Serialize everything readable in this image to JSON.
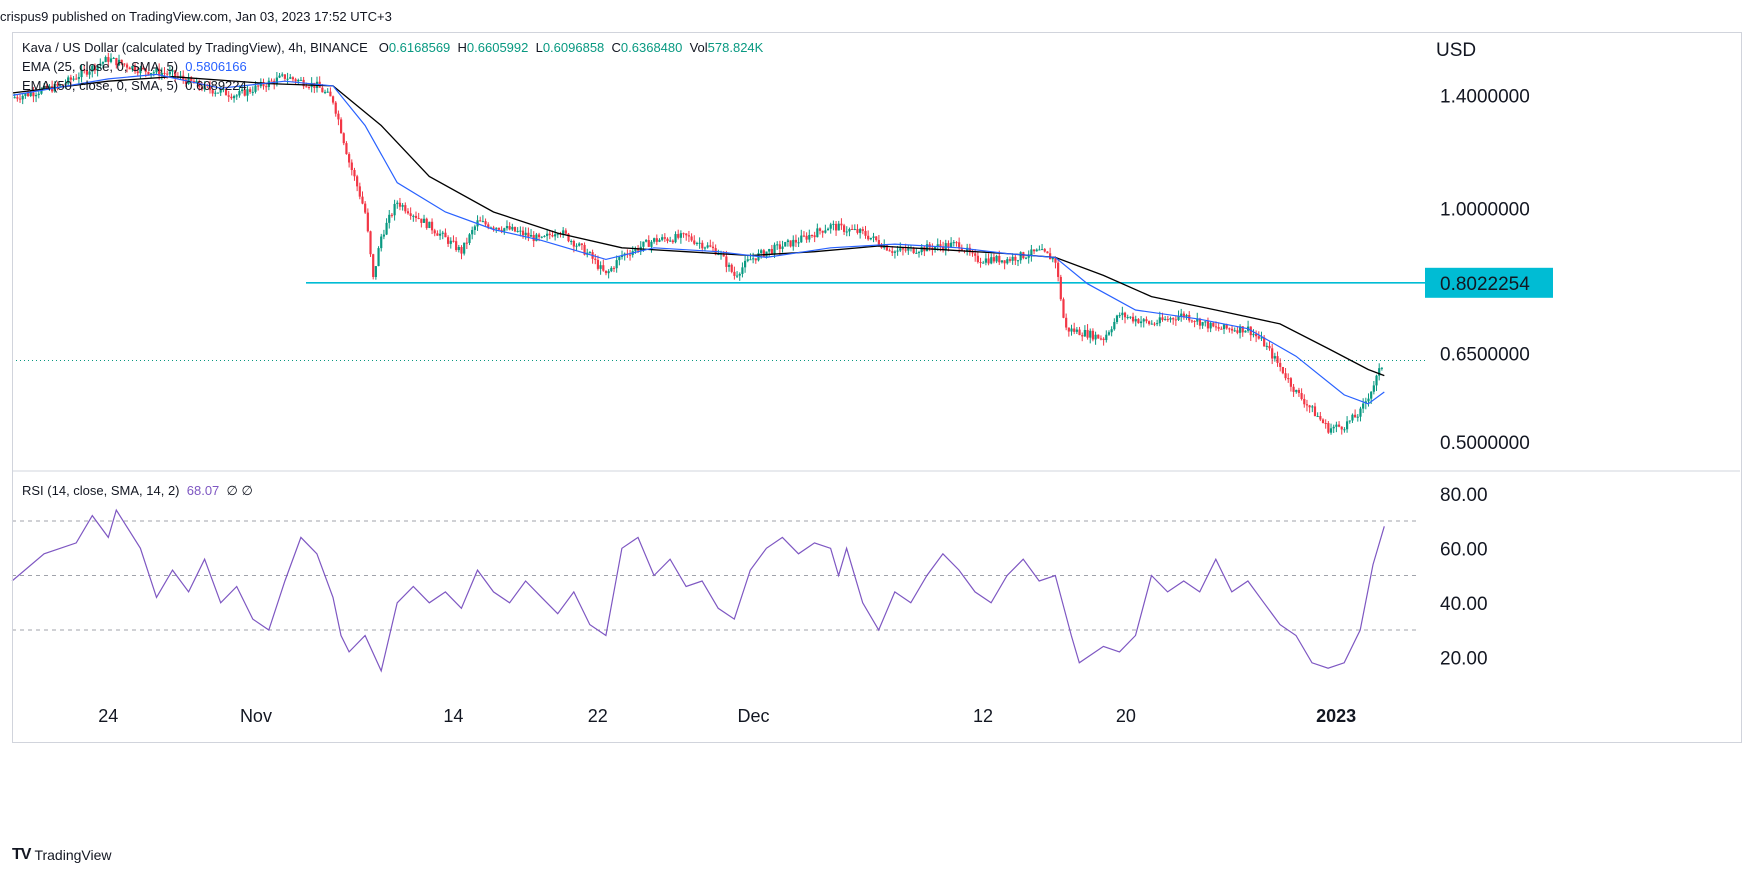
{
  "header": {
    "published_line": "crispus9 published on TradingView.com, Jan 03, 2023 17:52 UTC+3"
  },
  "legend": {
    "symbol": "Kava / US Dollar (calculated by TradingView), 4h, BINANCE",
    "o_label": "O",
    "o_value": "0.6168569",
    "h_label": "H",
    "h_value": "0.6605992",
    "l_label": "L",
    "l_value": "0.6096858",
    "c_label": "C",
    "c_value": "0.6368480",
    "vol_label": "Vol",
    "vol_value": "578.824K",
    "ema25_label": "EMA (25, close, 0, SMA, 5)",
    "ema25_value": "0.5806166",
    "ema50_label": "EMA (50, close, 0, SMA, 5)",
    "ema50_value": "0.6089224",
    "rsi_label": "RSI (14, close, SMA, 14, 2)",
    "rsi_value": "68.07",
    "rsi_extra": "∅  ∅"
  },
  "footer": {
    "brand": "TradingView",
    "logo": "TV"
  },
  "colors": {
    "up": "#089981",
    "down": "#f23645",
    "ema25": "#2962ff",
    "ema50": "#000000",
    "support": "#00bcd4",
    "rsi": "#7e57c2",
    "grid_dash": "#a0a3ab"
  },
  "chart_data": [
    {
      "type": "candlestick",
      "title": "Kava / US Dollar (calculated by TradingView), 4h, BINANCE",
      "ylabel": "USD",
      "y_scale": "log",
      "ylim": [
        0.46,
        1.68
      ],
      "x_ticks": [
        "24",
        "Nov",
        "14",
        "22",
        "Dec",
        "12",
        "20",
        "2023"
      ],
      "y_ticks": [
        "1.4000000",
        "1.0000000",
        "0.6500000",
        "0.5000000"
      ],
      "support_level": {
        "value": 0.8022254,
        "label": "0.8022254"
      },
      "last_close": 0.636848,
      "price_path": [
        {
          "day": 0,
          "price": 1.39
        },
        {
          "day": 3,
          "price": 1.44
        },
        {
          "day": 6,
          "price": 1.56
        },
        {
          "day": 8,
          "price": 1.51
        },
        {
          "day": 10,
          "price": 1.49
        },
        {
          "day": 12,
          "price": 1.43
        },
        {
          "day": 14,
          "price": 1.4
        },
        {
          "day": 17,
          "price": 1.48
        },
        {
          "day": 19,
          "price": 1.44
        },
        {
          "day": 20,
          "price": 1.38
        },
        {
          "day": 21,
          "price": 1.15
        },
        {
          "day": 22,
          "price": 0.99
        },
        {
          "day": 22.5,
          "price": 0.81
        },
        {
          "day": 23,
          "price": 0.92
        },
        {
          "day": 24,
          "price": 1.02
        },
        {
          "day": 26,
          "price": 0.95
        },
        {
          "day": 28,
          "price": 0.88
        },
        {
          "day": 29,
          "price": 0.96
        },
        {
          "day": 31,
          "price": 0.94
        },
        {
          "day": 33,
          "price": 0.91
        },
        {
          "day": 34,
          "price": 0.94
        },
        {
          "day": 36,
          "price": 0.87
        },
        {
          "day": 37,
          "price": 0.82
        },
        {
          "day": 38,
          "price": 0.87
        },
        {
          "day": 40,
          "price": 0.91
        },
        {
          "day": 42,
          "price": 0.92
        },
        {
          "day": 44,
          "price": 0.88
        },
        {
          "day": 45,
          "price": 0.82
        },
        {
          "day": 46,
          "price": 0.86
        },
        {
          "day": 47,
          "price": 0.88
        },
        {
          "day": 49,
          "price": 0.91
        },
        {
          "day": 51,
          "price": 0.95
        },
        {
          "day": 53,
          "price": 0.93
        },
        {
          "day": 55,
          "price": 0.88
        },
        {
          "day": 57,
          "price": 0.89
        },
        {
          "day": 59,
          "price": 0.9
        },
        {
          "day": 60,
          "price": 0.86
        },
        {
          "day": 62,
          "price": 0.86
        },
        {
          "day": 64,
          "price": 0.88
        },
        {
          "day": 65,
          "price": 0.86
        },
        {
          "day": 65.6,
          "price": 0.7
        },
        {
          "day": 67,
          "price": 0.69
        },
        {
          "day": 68,
          "price": 0.68
        },
        {
          "day": 69,
          "price": 0.73
        },
        {
          "day": 71,
          "price": 0.71
        },
        {
          "day": 73,
          "price": 0.73
        },
        {
          "day": 75,
          "price": 0.7
        },
        {
          "day": 77,
          "price": 0.7
        },
        {
          "day": 78,
          "price": 0.67
        },
        {
          "day": 80,
          "price": 0.58
        },
        {
          "day": 81,
          "price": 0.55
        },
        {
          "day": 82,
          "price": 0.52
        },
        {
          "day": 83,
          "price": 0.525
        },
        {
          "day": 84,
          "price": 0.545
        },
        {
          "day": 84.8,
          "price": 0.59
        },
        {
          "day": 85.5,
          "price": 0.637
        }
      ],
      "ema_25": [
        {
          "day": 0,
          "price": 1.4
        },
        {
          "day": 6,
          "price": 1.47
        },
        {
          "day": 9,
          "price": 1.49
        },
        {
          "day": 13,
          "price": 1.43
        },
        {
          "day": 17,
          "price": 1.46
        },
        {
          "day": 20,
          "price": 1.44
        },
        {
          "day": 22,
          "price": 1.28
        },
        {
          "day": 24,
          "price": 1.08
        },
        {
          "day": 27,
          "price": 0.99
        },
        {
          "day": 30,
          "price": 0.94
        },
        {
          "day": 33,
          "price": 0.91
        },
        {
          "day": 37,
          "price": 0.86
        },
        {
          "day": 40,
          "price": 0.89
        },
        {
          "day": 44,
          "price": 0.88
        },
        {
          "day": 47,
          "price": 0.865
        },
        {
          "day": 51,
          "price": 0.89
        },
        {
          "day": 55,
          "price": 0.9
        },
        {
          "day": 59,
          "price": 0.89
        },
        {
          "day": 62,
          "price": 0.875
        },
        {
          "day": 65,
          "price": 0.865
        },
        {
          "day": 67,
          "price": 0.8
        },
        {
          "day": 70,
          "price": 0.74
        },
        {
          "day": 74,
          "price": 0.72
        },
        {
          "day": 77,
          "price": 0.7
        },
        {
          "day": 80,
          "price": 0.645
        },
        {
          "day": 83,
          "price": 0.575
        },
        {
          "day": 84.5,
          "price": 0.56
        },
        {
          "day": 85.5,
          "price": 0.58
        }
      ],
      "ema_50": [
        {
          "day": 0,
          "price": 1.41
        },
        {
          "day": 6,
          "price": 1.46
        },
        {
          "day": 10,
          "price": 1.48
        },
        {
          "day": 16,
          "price": 1.45
        },
        {
          "day": 20,
          "price": 1.44
        },
        {
          "day": 23,
          "price": 1.28
        },
        {
          "day": 26,
          "price": 1.1
        },
        {
          "day": 30,
          "price": 0.99
        },
        {
          "day": 34,
          "price": 0.93
        },
        {
          "day": 38,
          "price": 0.89
        },
        {
          "day": 42,
          "price": 0.88
        },
        {
          "day": 46,
          "price": 0.87
        },
        {
          "day": 50,
          "price": 0.88
        },
        {
          "day": 54,
          "price": 0.895
        },
        {
          "day": 58,
          "price": 0.885
        },
        {
          "day": 62,
          "price": 0.875
        },
        {
          "day": 65,
          "price": 0.865
        },
        {
          "day": 68,
          "price": 0.82
        },
        {
          "day": 71,
          "price": 0.77
        },
        {
          "day": 75,
          "price": 0.74
        },
        {
          "day": 79,
          "price": 0.71
        },
        {
          "day": 82,
          "price": 0.66
        },
        {
          "day": 84.5,
          "price": 0.62
        },
        {
          "day": 85.5,
          "price": 0.609
        }
      ]
    },
    {
      "type": "line",
      "title": "RSI (14, close, SMA, 14, 2)",
      "ylim": [
        8,
        88
      ],
      "y_ticks": [
        "80.00",
        "60.00",
        "40.00",
        "20.00"
      ],
      "levels": [
        70,
        50,
        30
      ],
      "last_value": 68.07,
      "series": [
        {
          "values": [
            {
              "day": 0,
              "value": 48
            },
            {
              "day": 2,
              "value": 58
            },
            {
              "day": 4,
              "value": 62
            },
            {
              "day": 5,
              "value": 72
            },
            {
              "day": 6,
              "value": 64
            },
            {
              "day": 6.5,
              "value": 74
            },
            {
              "day": 8,
              "value": 60
            },
            {
              "day": 9,
              "value": 42
            },
            {
              "day": 10,
              "value": 52
            },
            {
              "day": 11,
              "value": 44
            },
            {
              "day": 12,
              "value": 56
            },
            {
              "day": 13,
              "value": 40
            },
            {
              "day": 14,
              "value": 46
            },
            {
              "day": 15,
              "value": 34
            },
            {
              "day": 16,
              "value": 30
            },
            {
              "day": 17,
              "value": 48
            },
            {
              "day": 18,
              "value": 64
            },
            {
              "day": 19,
              "value": 58
            },
            {
              "day": 20,
              "value": 42
            },
            {
              "day": 20.5,
              "value": 28
            },
            {
              "day": 21,
              "value": 22
            },
            {
              "day": 22,
              "value": 28
            },
            {
              "day": 23,
              "value": 15
            },
            {
              "day": 24,
              "value": 40
            },
            {
              "day": 25,
              "value": 46
            },
            {
              "day": 26,
              "value": 40
            },
            {
              "day": 27,
              "value": 44
            },
            {
              "day": 28,
              "value": 38
            },
            {
              "day": 29,
              "value": 52
            },
            {
              "day": 30,
              "value": 44
            },
            {
              "day": 31,
              "value": 40
            },
            {
              "day": 32,
              "value": 48
            },
            {
              "day": 33,
              "value": 42
            },
            {
              "day": 34,
              "value": 36
            },
            {
              "day": 35,
              "value": 44
            },
            {
              "day": 36,
              "value": 32
            },
            {
              "day": 37,
              "value": 28
            },
            {
              "day": 38,
              "value": 60
            },
            {
              "day": 39,
              "value": 64
            },
            {
              "day": 40,
              "value": 50
            },
            {
              "day": 41,
              "value": 56
            },
            {
              "day": 42,
              "value": 46
            },
            {
              "day": 43,
              "value": 48
            },
            {
              "day": 44,
              "value": 38
            },
            {
              "day": 45,
              "value": 34
            },
            {
              "day": 46,
              "value": 52
            },
            {
              "day": 47,
              "value": 60
            },
            {
              "day": 48,
              "value": 64
            },
            {
              "day": 49,
              "value": 58
            },
            {
              "day": 50,
              "value": 62
            },
            {
              "day": 51,
              "value": 60
            },
            {
              "day": 51.5,
              "value": 50
            },
            {
              "day": 52,
              "value": 60
            },
            {
              "day": 53,
              "value": 40
            },
            {
              "day": 54,
              "value": 30
            },
            {
              "day": 55,
              "value": 44
            },
            {
              "day": 56,
              "value": 40
            },
            {
              "day": 57,
              "value": 50
            },
            {
              "day": 58,
              "value": 58
            },
            {
              "day": 59,
              "value": 52
            },
            {
              "day": 60,
              "value": 44
            },
            {
              "day": 61,
              "value": 40
            },
            {
              "day": 62,
              "value": 50
            },
            {
              "day": 63,
              "value": 56
            },
            {
              "day": 64,
              "value": 48
            },
            {
              "day": 65,
              "value": 50
            },
            {
              "day": 66,
              "value": 28
            },
            {
              "day": 66.5,
              "value": 18
            },
            {
              "day": 68,
              "value": 24
            },
            {
              "day": 69,
              "value": 22
            },
            {
              "day": 70,
              "value": 28
            },
            {
              "day": 71,
              "value": 50
            },
            {
              "day": 72,
              "value": 44
            },
            {
              "day": 73,
              "value": 48
            },
            {
              "day": 74,
              "value": 44
            },
            {
              "day": 75,
              "value": 56
            },
            {
              "day": 76,
              "value": 44
            },
            {
              "day": 77,
              "value": 48
            },
            {
              "day": 78,
              "value": 40
            },
            {
              "day": 79,
              "value": 32
            },
            {
              "day": 80,
              "value": 28
            },
            {
              "day": 81,
              "value": 18
            },
            {
              "day": 82,
              "value": 16
            },
            {
              "day": 83,
              "value": 18
            },
            {
              "day": 84,
              "value": 30
            },
            {
              "day": 84.8,
              "value": 54
            },
            {
              "day": 85.5,
              "value": 68.07
            }
          ]
        }
      ]
    }
  ]
}
